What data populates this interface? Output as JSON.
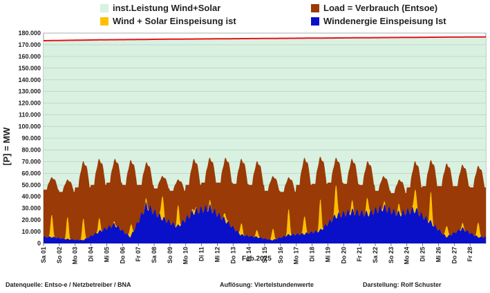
{
  "legend": [
    {
      "label": "inst.Leistung Wind+Solar",
      "color": "#d8f1e0"
    },
    {
      "label": "Load =  Verbrauch (Entsoe)",
      "color": "#9a3a06"
    },
    {
      "label": "Wind + Solar Einspeisung ist",
      "color": "#ffc000"
    },
    {
      "label": "Windenergie Einspeisung Ist",
      "color": "#0a10c8"
    }
  ],
  "footer": {
    "source": "Datenquelle:  Entso-e  / Netzbetreiber / BNA",
    "resolution": "Auflösung: Viertelstundenwerte",
    "author": "Darstellung:  Rolf Schuster"
  },
  "chart_data": {
    "type": "area",
    "ylabel": "[P] = MW",
    "xlabel": "Feb.2025",
    "ylim": [
      0,
      180000
    ],
    "yticks": [
      "0",
      "10.000",
      "20.000",
      "30.000",
      "40.000",
      "50.000",
      "60.000",
      "70.000",
      "80.000",
      "90.000",
      "100.000",
      "110.000",
      "120.000",
      "130.000",
      "140.000",
      "150.000",
      "160.000",
      "170.000",
      "180.000"
    ],
    "categories": [
      "Sa 01",
      "So 02",
      "Mo 03",
      "Di 04",
      "Mi 05",
      "Do 06",
      "Fr 07",
      "Sa 08",
      "So 09",
      "Mo 10",
      "Di 11",
      "Mi 12",
      "Do 13",
      "Fr 14",
      "Sa 15",
      "So 16",
      "Mo 17",
      "Di 18",
      "Mi 19",
      "Do 20",
      "Fr 21",
      "Sa 22",
      "So 23",
      "Mo 24",
      "Di 25",
      "Mi 26",
      "Do 27",
      "Fr 28"
    ],
    "grid": true,
    "legend_position": "top",
    "series": [
      {
        "name": "inst.Leistung Wind+Solar",
        "color": "#d8f1e0",
        "line_color": "#e8101c",
        "values": [
          173500,
          173700,
          173900,
          174100,
          174300,
          174400,
          174500,
          174700,
          174800,
          174900,
          175000,
          175100,
          175200,
          175300,
          175400,
          175500,
          175600,
          175700,
          175800,
          175900,
          176000,
          176100,
          176200,
          176300,
          176400,
          176500,
          176600,
          176700
        ]
      },
      {
        "name": "Load =  Verbrauch (Entsoe)",
        "color": "#9a3a06",
        "daily_min": [
          46000,
          44000,
          48000,
          50000,
          52000,
          50000,
          50000,
          47000,
          45000,
          50000,
          52000,
          52000,
          51000,
          50000,
          45000,
          44000,
          50000,
          51000,
          52000,
          51000,
          50000,
          45000,
          43000,
          48000,
          49000,
          49000,
          49000,
          48000
        ],
        "daily_max": [
          57000,
          55000,
          71000,
          73000,
          73000,
          72000,
          70000,
          58000,
          55000,
          73000,
          74000,
          74000,
          73000,
          71000,
          58000,
          57000,
          74000,
          75000,
          74000,
          73000,
          71000,
          58000,
          55000,
          71000,
          72000,
          69000,
          68000,
          67000
        ]
      },
      {
        "name": "Wind + Solar Einspeisung ist",
        "color": "#ffc000",
        "daily_peak": [
          26000,
          23000,
          22000,
          22000,
          20000,
          16000,
          40000,
          45000,
          33000,
          34000,
          38000,
          28000,
          18000,
          12000,
          13000,
          30000,
          25000,
          38000,
          55000,
          38000,
          42000,
          38000,
          35000,
          52000,
          45000,
          16000,
          18000,
          19000
        ]
      },
      {
        "name": "Windenergie Einspeisung Ist",
        "color": "#0a10c8",
        "daily_avg": [
          6000,
          4000,
          3000,
          11000,
          18000,
          6000,
          36000,
          24000,
          16000,
          30000,
          34000,
          22000,
          8000,
          6000,
          3000,
          8000,
          9000,
          12000,
          26000,
          30000,
          28000,
          34000,
          28000,
          32000,
          20000,
          6000,
          14000,
          6000
        ]
      }
    ]
  }
}
